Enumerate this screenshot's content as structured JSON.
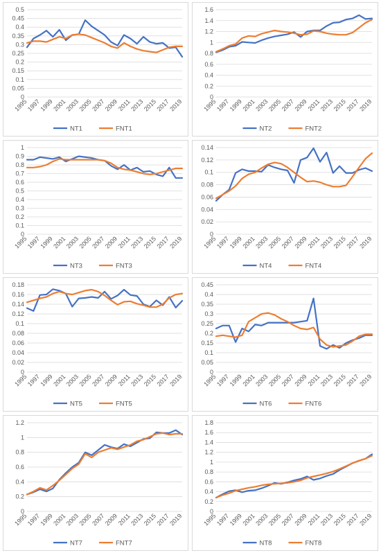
{
  "colors": {
    "nt": "#4472C4",
    "fnt": "#ED7D31",
    "grid": "#d9d9d9",
    "text": "#595959"
  },
  "chart_data": [
    {
      "type": "line",
      "x": [
        "1995",
        "1996",
        "1997",
        "1998",
        "1999",
        "2000",
        "2001",
        "2002",
        "2003",
        "2004",
        "2005",
        "2006",
        "2007",
        "2008",
        "2009",
        "2010",
        "2011",
        "2012",
        "2013",
        "2014",
        "2015",
        "2016",
        "2017",
        "2018",
        "2019"
      ],
      "xticks": [
        "1995",
        "1997",
        "1999",
        "2001",
        "2003",
        "2005",
        "2007",
        "2009",
        "2011",
        "2013",
        "2015",
        "2017",
        "2019"
      ],
      "yticks": [
        "0",
        "0.05",
        "0.1",
        "0.15",
        "0.2",
        "0.25",
        "0.3",
        "0.35",
        "0.4",
        "0.45",
        "0.5"
      ],
      "ylim": [
        0,
        0.5
      ],
      "grid": true,
      "legend": "bottom",
      "series": [
        {
          "name": "NT1",
          "color": "#4472C4",
          "values": [
            0.285,
            0.335,
            0.355,
            0.38,
            0.345,
            0.385,
            0.325,
            0.355,
            0.36,
            0.44,
            0.405,
            0.38,
            0.355,
            0.315,
            0.295,
            0.355,
            0.335,
            0.305,
            0.345,
            0.315,
            0.305,
            0.31,
            0.28,
            0.285,
            0.23
          ]
        },
        {
          "name": "FNT1",
          "color": "#ED7D31",
          "values": [
            0.31,
            0.32,
            0.32,
            0.315,
            0.33,
            0.345,
            0.335,
            0.355,
            0.36,
            0.355,
            0.34,
            0.325,
            0.31,
            0.29,
            0.28,
            0.31,
            0.29,
            0.275,
            0.265,
            0.26,
            0.255,
            0.27,
            0.285,
            0.29,
            0.29
          ]
        }
      ]
    },
    {
      "type": "line",
      "x": [
        "1995",
        "1996",
        "1997",
        "1998",
        "1999",
        "2000",
        "2001",
        "2002",
        "2003",
        "2004",
        "2005",
        "2006",
        "2007",
        "2008",
        "2009",
        "2010",
        "2011",
        "2012",
        "2013",
        "2014",
        "2015",
        "2016",
        "2017",
        "2018",
        "2019"
      ],
      "xticks": [
        "1995",
        "1997",
        "1999",
        "2001",
        "2003",
        "2005",
        "2007",
        "2009",
        "2011",
        "2013",
        "2015",
        "2017",
        "2019"
      ],
      "yticks": [
        "0",
        "0.2",
        "0.4",
        "0.6",
        "0.8",
        "1",
        "1.2",
        "1.4",
        "1.6"
      ],
      "ylim": [
        0,
        1.6
      ],
      "grid": true,
      "legend": "bottom",
      "series": [
        {
          "name": "NT2",
          "color": "#4472C4",
          "values": [
            0.82,
            0.86,
            0.92,
            0.94,
            1.01,
            1.0,
            0.99,
            1.04,
            1.08,
            1.11,
            1.13,
            1.15,
            1.19,
            1.1,
            1.2,
            1.22,
            1.22,
            1.3,
            1.36,
            1.37,
            1.42,
            1.44,
            1.5,
            1.43,
            1.44
          ]
        },
        {
          "name": "FNT2",
          "color": "#ED7D31",
          "values": [
            0.83,
            0.88,
            0.94,
            0.97,
            1.08,
            1.12,
            1.11,
            1.16,
            1.19,
            1.22,
            1.2,
            1.19,
            1.17,
            1.14,
            1.15,
            1.21,
            1.2,
            1.17,
            1.15,
            1.14,
            1.14,
            1.18,
            1.27,
            1.36,
            1.42
          ]
        }
      ]
    },
    {
      "type": "line",
      "x": [
        "1995",
        "1996",
        "1997",
        "1998",
        "1999",
        "2000",
        "2001",
        "2002",
        "2003",
        "2004",
        "2005",
        "2006",
        "2007",
        "2008",
        "2009",
        "2010",
        "2011",
        "2012",
        "2013",
        "2014",
        "2015",
        "2016",
        "2017",
        "2018",
        "2019"
      ],
      "xticks": [
        "1995",
        "1997",
        "1999",
        "2001",
        "2003",
        "2005",
        "2007",
        "2009",
        "2011",
        "2013",
        "2015",
        "2017",
        "2019"
      ],
      "yticks": [
        "0",
        "0.1",
        "0.2",
        "0.3",
        "0.4",
        "0.5",
        "0.6",
        "0.7",
        "0.8",
        "0.9",
        "1"
      ],
      "ylim": [
        0,
        1
      ],
      "grid": true,
      "legend": "bottom",
      "series": [
        {
          "name": "NT3",
          "color": "#4472C4",
          "values": [
            0.86,
            0.86,
            0.89,
            0.88,
            0.87,
            0.89,
            0.84,
            0.87,
            0.9,
            0.89,
            0.88,
            0.86,
            0.85,
            0.79,
            0.75,
            0.8,
            0.74,
            0.77,
            0.72,
            0.73,
            0.69,
            0.67,
            0.77,
            0.65,
            0.65
          ]
        },
        {
          "name": "FNT3",
          "color": "#ED7D31",
          "values": [
            0.77,
            0.77,
            0.78,
            0.8,
            0.84,
            0.87,
            0.86,
            0.86,
            0.86,
            0.86,
            0.86,
            0.86,
            0.85,
            0.82,
            0.77,
            0.75,
            0.74,
            0.72,
            0.7,
            0.69,
            0.7,
            0.72,
            0.74,
            0.76,
            0.76
          ]
        }
      ]
    },
    {
      "type": "line",
      "x": [
        "1995",
        "1996",
        "1997",
        "1998",
        "1999",
        "2000",
        "2001",
        "2002",
        "2003",
        "2004",
        "2005",
        "2006",
        "2007",
        "2008",
        "2009",
        "2010",
        "2011",
        "2012",
        "2013",
        "2014",
        "2015",
        "2016",
        "2017",
        "2018",
        "2019"
      ],
      "xticks": [
        "1995",
        "1997",
        "1999",
        "2001",
        "2003",
        "2005",
        "2007",
        "2009",
        "2011",
        "2013",
        "2015",
        "2017",
        "2019"
      ],
      "yticks": [
        "0",
        "0.02",
        "0.04",
        "0.06",
        "0.08",
        "0.1",
        "0.12",
        "0.14"
      ],
      "ylim": [
        0,
        0.14
      ],
      "grid": true,
      "legend": "bottom",
      "series": [
        {
          "name": "NT4",
          "color": "#4472C4",
          "values": [
            0.054,
            0.064,
            0.072,
            0.099,
            0.105,
            0.102,
            0.102,
            0.101,
            0.112,
            0.108,
            0.105,
            0.103,
            0.083,
            0.12,
            0.124,
            0.139,
            0.117,
            0.132,
            0.099,
            0.11,
            0.099,
            0.099,
            0.104,
            0.107,
            0.102
          ]
        },
        {
          "name": "FNT4",
          "color": "#ED7D31",
          "values": [
            0.058,
            0.064,
            0.07,
            0.078,
            0.09,
            0.097,
            0.1,
            0.107,
            0.113,
            0.116,
            0.114,
            0.108,
            0.1,
            0.092,
            0.085,
            0.086,
            0.084,
            0.08,
            0.077,
            0.077,
            0.079,
            0.093,
            0.108,
            0.122,
            0.131
          ]
        }
      ]
    },
    {
      "type": "line",
      "x": [
        "1995",
        "1996",
        "1997",
        "1998",
        "1999",
        "2000",
        "2001",
        "2002",
        "2003",
        "2004",
        "2005",
        "2006",
        "2007",
        "2008",
        "2009",
        "2010",
        "2011",
        "2012",
        "2013",
        "2014",
        "2015",
        "2016",
        "2017",
        "2018",
        "2019"
      ],
      "xticks": [
        "1995",
        "1997",
        "1999",
        "2001",
        "2003",
        "2005",
        "2007",
        "2009",
        "2011",
        "2013",
        "2015",
        "2017",
        "2019"
      ],
      "yticks": [
        "0",
        "0.02",
        "0.04",
        "0.06",
        "0.08",
        "0.1",
        "0.12",
        "0.14",
        "0.16",
        "0.18"
      ],
      "ylim": [
        0,
        0.18
      ],
      "grid": true,
      "legend": "bottom",
      "series": [
        {
          "name": "NT5",
          "color": "#4472C4",
          "values": [
            0.132,
            0.126,
            0.159,
            0.16,
            0.171,
            0.168,
            0.162,
            0.135,
            0.152,
            0.153,
            0.155,
            0.153,
            0.166,
            0.151,
            0.158,
            0.17,
            0.159,
            0.157,
            0.14,
            0.135,
            0.148,
            0.138,
            0.155,
            0.133,
            0.147
          ]
        },
        {
          "name": "FNT5",
          "color": "#ED7D31",
          "values": [
            0.144,
            0.148,
            0.152,
            0.155,
            0.162,
            0.166,
            0.162,
            0.16,
            0.164,
            0.168,
            0.17,
            0.166,
            0.158,
            0.148,
            0.139,
            0.145,
            0.146,
            0.141,
            0.138,
            0.134,
            0.134,
            0.14,
            0.153,
            0.16,
            0.162
          ]
        }
      ]
    },
    {
      "type": "line",
      "x": [
        "1995",
        "1996",
        "1997",
        "1998",
        "1999",
        "2000",
        "2001",
        "2002",
        "2003",
        "2004",
        "2005",
        "2006",
        "2007",
        "2008",
        "2009",
        "2010",
        "2011",
        "2012",
        "2013",
        "2014",
        "2015",
        "2016",
        "2017",
        "2018",
        "2019"
      ],
      "xticks": [
        "1995",
        "1997",
        "1999",
        "2001",
        "2003",
        "2005",
        "2007",
        "2009",
        "2011",
        "2013",
        "2015",
        "2017",
        "2019"
      ],
      "yticks": [
        "0",
        "0.05",
        "0.1",
        "0.15",
        "0.2",
        "0.25",
        "0.3",
        "0.35",
        "0.4",
        "0.45"
      ],
      "ylim": [
        0,
        0.45
      ],
      "grid": true,
      "legend": "bottom",
      "series": [
        {
          "name": "NT6",
          "color": "#4472C4",
          "values": [
            0.225,
            0.24,
            0.24,
            0.155,
            0.225,
            0.21,
            0.245,
            0.24,
            0.255,
            0.255,
            0.255,
            0.255,
            0.255,
            0.26,
            0.265,
            0.38,
            0.135,
            0.12,
            0.14,
            0.125,
            0.15,
            0.165,
            0.175,
            0.19,
            0.19
          ]
        },
        {
          "name": "FNT6",
          "color": "#ED7D31",
          "values": [
            0.185,
            0.19,
            0.185,
            0.18,
            0.19,
            0.26,
            0.28,
            0.3,
            0.305,
            0.295,
            0.275,
            0.26,
            0.24,
            0.225,
            0.22,
            0.23,
            0.17,
            0.14,
            0.13,
            0.135,
            0.14,
            0.16,
            0.185,
            0.195,
            0.195
          ]
        }
      ]
    },
    {
      "type": "line",
      "x": [
        "1995",
        "1996",
        "1997",
        "1998",
        "1999",
        "2000",
        "2001",
        "2002",
        "2003",
        "2004",
        "2005",
        "2006",
        "2007",
        "2008",
        "2009",
        "2010",
        "2011",
        "2012",
        "2013",
        "2014",
        "2015",
        "2016",
        "2017",
        "2018",
        "2019"
      ],
      "xticks": [
        "1995",
        "1997",
        "1999",
        "2001",
        "2003",
        "2005",
        "2007",
        "2009",
        "2011",
        "2013",
        "2015",
        "2017",
        "2019"
      ],
      "yticks": [
        "0",
        "0.2",
        "0.4",
        "0.6",
        "0.8",
        "1",
        "1.2"
      ],
      "ylim": [
        0,
        1.2
      ],
      "grid": true,
      "legend": "bottom",
      "series": [
        {
          "name": "NT7",
          "color": "#4472C4",
          "values": [
            0.23,
            0.26,
            0.3,
            0.27,
            0.31,
            0.43,
            0.52,
            0.6,
            0.66,
            0.8,
            0.76,
            0.83,
            0.9,
            0.87,
            0.85,
            0.91,
            0.88,
            0.93,
            0.98,
            0.99,
            1.07,
            1.06,
            1.06,
            1.1,
            1.04
          ]
        },
        {
          "name": "FNT7",
          "color": "#ED7D31",
          "values": [
            0.23,
            0.27,
            0.32,
            0.29,
            0.35,
            0.42,
            0.5,
            0.58,
            0.64,
            0.78,
            0.73,
            0.8,
            0.83,
            0.86,
            0.84,
            0.87,
            0.9,
            0.95,
            0.97,
            1.01,
            1.05,
            1.06,
            1.04,
            1.05,
            1.05
          ]
        }
      ]
    },
    {
      "type": "line",
      "x": [
        "1995",
        "1996",
        "1997",
        "1998",
        "1999",
        "2000",
        "2001",
        "2002",
        "2003",
        "2004",
        "2005",
        "2006",
        "2007",
        "2008",
        "2009",
        "2010",
        "2011",
        "2012",
        "2013",
        "2014",
        "2015",
        "2016",
        "2017",
        "2018",
        "2019"
      ],
      "xticks": [
        "1995",
        "1997",
        "1999",
        "2001",
        "2003",
        "2005",
        "2007",
        "2009",
        "2011",
        "2013",
        "2015",
        "2017",
        "2019"
      ],
      "yticks": [
        "0",
        "0.2",
        "0.4",
        "0.6",
        "0.8",
        "1",
        "1.2",
        "1.4",
        "1.6",
        "1.8"
      ],
      "ylim": [
        0,
        1.8
      ],
      "grid": true,
      "legend": "bottom",
      "series": [
        {
          "name": "NT8",
          "color": "#4472C4",
          "values": [
            0.28,
            0.35,
            0.41,
            0.43,
            0.39,
            0.42,
            0.43,
            0.47,
            0.52,
            0.58,
            0.56,
            0.59,
            0.63,
            0.66,
            0.71,
            0.64,
            0.67,
            0.72,
            0.76,
            0.84,
            0.91,
            0.98,
            1.03,
            1.07,
            1.16
          ]
        },
        {
          "name": "FNT8",
          "color": "#ED7D31",
          "values": [
            0.28,
            0.33,
            0.37,
            0.42,
            0.45,
            0.48,
            0.5,
            0.53,
            0.55,
            0.56,
            0.57,
            0.58,
            0.6,
            0.63,
            0.68,
            0.71,
            0.74,
            0.77,
            0.81,
            0.86,
            0.92,
            0.98,
            1.03,
            1.07,
            1.13
          ]
        }
      ]
    }
  ]
}
